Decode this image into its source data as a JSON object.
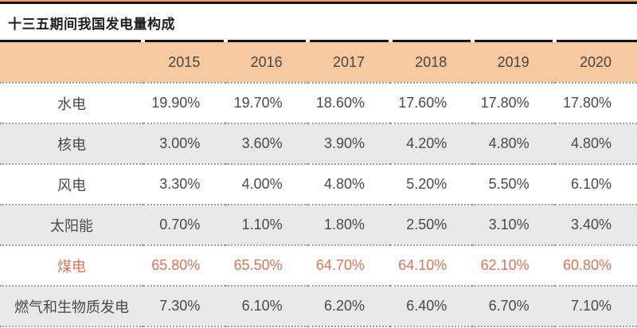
{
  "page": {
    "title": "十三五期间我国发电量构成"
  },
  "colors": {
    "header_bg": "#f8c8a0",
    "top_accent_orange": "#f2a470",
    "rule_black": "#141414",
    "zebra_row_bg": "#e8e8e8",
    "highlight_text": "#d9735a",
    "body_text": "#4a4a4a",
    "dotted_separator": "#a39d97"
  },
  "chart_data": {
    "type": "table",
    "title": "十三五期间我国发电量构成",
    "columns": [
      "",
      "2015",
      "2016",
      "2017",
      "2018",
      "2019",
      "2020"
    ],
    "rows": [
      {
        "label": "水电",
        "highlight": false,
        "values": [
          "19.90%",
          "19.70%",
          "18.60%",
          "17.60%",
          "17.80%",
          "17.80%"
        ]
      },
      {
        "label": "核电",
        "highlight": false,
        "values": [
          "3.00%",
          "3.60%",
          "3.90%",
          "4.20%",
          "4.80%",
          "4.80%"
        ]
      },
      {
        "label": "风电",
        "highlight": false,
        "values": [
          "3.30%",
          "4.00%",
          "4.80%",
          "5.20%",
          "5.50%",
          "6.10%"
        ]
      },
      {
        "label": "太阳能",
        "highlight": false,
        "values": [
          "0.70%",
          "1.10%",
          "1.80%",
          "2.50%",
          "3.10%",
          "3.40%"
        ]
      },
      {
        "label": "煤电",
        "highlight": true,
        "values": [
          "65.80%",
          "65.50%",
          "64.70%",
          "64.10%",
          "62.10%",
          "60.80%"
        ]
      },
      {
        "label": "燃气和生物质发电",
        "highlight": false,
        "values": [
          "7.30%",
          "6.10%",
          "6.20%",
          "6.40%",
          "6.70%",
          "7.10%"
        ]
      }
    ],
    "layout": {
      "zebra_striping": true,
      "header_position": "top",
      "label_column_align": "center",
      "value_align": "right"
    }
  }
}
